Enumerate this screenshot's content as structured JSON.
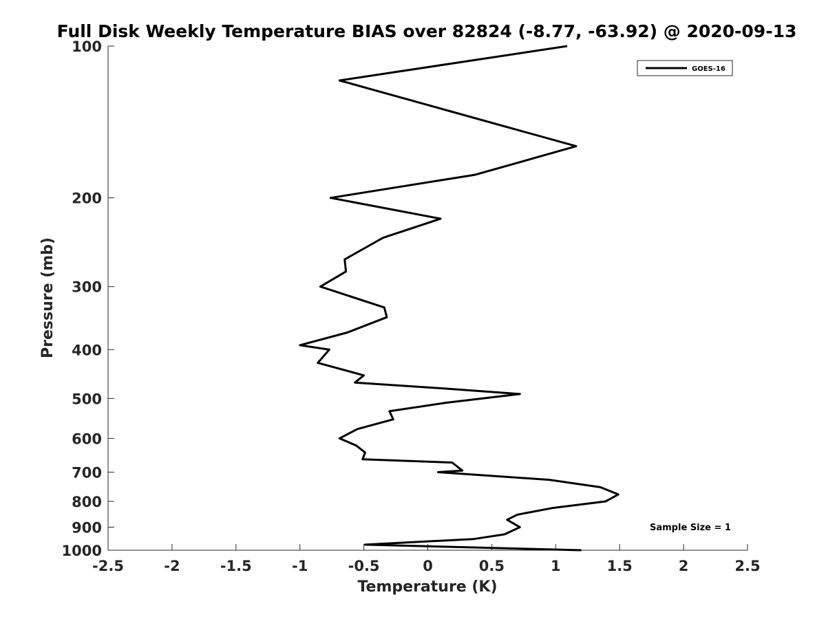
{
  "chart_data": {
    "type": "line",
    "title": "Full Disk Weekly Temperature BIAS over 82824 (-8.77, -63.92) @ 2020-09-13",
    "xlabel": "Temperature (K)",
    "ylabel": "Pressure (mb)",
    "xlim": [
      -2.5,
      2.5
    ],
    "ylim": [
      100,
      1000
    ],
    "y_scale": "log",
    "y_reversed": true,
    "x_ticks": [
      -2.5,
      -2,
      -1.5,
      -1,
      -0.5,
      0,
      0.5,
      1,
      1.5,
      2,
      2.5
    ],
    "x_tick_labels": [
      "-2.5",
      "-2",
      "-1.5",
      "-1",
      "-0.5",
      "0",
      "0.5",
      "1",
      "1.5",
      "2",
      "2.5"
    ],
    "y_ticks": [
      100,
      200,
      300,
      400,
      500,
      600,
      700,
      800,
      900,
      1000
    ],
    "y_tick_labels": [
      "100",
      "200",
      "300",
      "400",
      "500",
      "600",
      "700",
      "800",
      "900",
      "1000"
    ],
    "grid": false,
    "legend_position": "top-right",
    "annotation": "Sample Size = 1",
    "series": [
      {
        "name": "GOES-16",
        "color": "#000000",
        "points": [
          {
            "p": 100,
            "t": 1.09
          },
          {
            "p": 117,
            "t": -0.69
          },
          {
            "p": 135,
            "t": 0.19
          },
          {
            "p": 158,
            "t": 1.16
          },
          {
            "p": 180,
            "t": 0.37
          },
          {
            "p": 200,
            "t": -0.76
          },
          {
            "p": 220,
            "t": 0.1
          },
          {
            "p": 240,
            "t": -0.35
          },
          {
            "p": 265,
            "t": -0.65
          },
          {
            "p": 280,
            "t": -0.64
          },
          {
            "p": 300,
            "t": -0.84
          },
          {
            "p": 330,
            "t": -0.34
          },
          {
            "p": 345,
            "t": -0.32
          },
          {
            "p": 370,
            "t": -0.63
          },
          {
            "p": 392,
            "t": -1.0
          },
          {
            "p": 400,
            "t": -0.77
          },
          {
            "p": 425,
            "t": -0.86
          },
          {
            "p": 450,
            "t": -0.5
          },
          {
            "p": 465,
            "t": -0.57
          },
          {
            "p": 478,
            "t": 0.14
          },
          {
            "p": 490,
            "t": 0.72
          },
          {
            "p": 510,
            "t": 0.14
          },
          {
            "p": 530,
            "t": -0.3
          },
          {
            "p": 550,
            "t": -0.27
          },
          {
            "p": 575,
            "t": -0.55
          },
          {
            "p": 600,
            "t": -0.69
          },
          {
            "p": 620,
            "t": -0.56
          },
          {
            "p": 640,
            "t": -0.49
          },
          {
            "p": 660,
            "t": -0.51
          },
          {
            "p": 670,
            "t": 0.19
          },
          {
            "p": 695,
            "t": 0.27
          },
          {
            "p": 700,
            "t": 0.08
          },
          {
            "p": 725,
            "t": 0.95
          },
          {
            "p": 750,
            "t": 1.35
          },
          {
            "p": 775,
            "t": 1.49
          },
          {
            "p": 800,
            "t": 1.39
          },
          {
            "p": 825,
            "t": 0.97
          },
          {
            "p": 850,
            "t": 0.7
          },
          {
            "p": 870,
            "t": 0.62
          },
          {
            "p": 900,
            "t": 0.72
          },
          {
            "p": 930,
            "t": 0.6
          },
          {
            "p": 950,
            "t": 0.36
          },
          {
            "p": 975,
            "t": -0.49
          },
          {
            "p": 1000,
            "t": 1.2
          }
        ]
      }
    ]
  }
}
